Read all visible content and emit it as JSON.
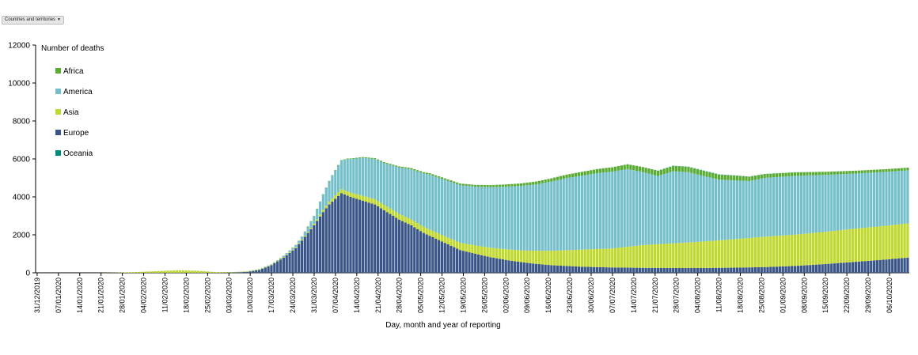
{
  "controls": {
    "filter_label": "Countries and territories",
    "filter_caret": "▼"
  },
  "chart_data": {
    "type": "bar",
    "stacked": true,
    "ylabel": "Number of deaths",
    "xlabel": "Day, month and year of reporting",
    "ylim": [
      0,
      12000
    ],
    "yticks": [
      0,
      2000,
      4000,
      6000,
      8000,
      10000,
      12000
    ],
    "x_start": "2019-12-31",
    "x_end": "2020-10-12",
    "xticks": [
      "31/12/2019",
      "07/01/2020",
      "14/01/2020",
      "21/01/2020",
      "28/01/2020",
      "04/02/2020",
      "11/02/2020",
      "18/02/2020",
      "25/02/2020",
      "03/03/2020",
      "10/03/2020",
      "17/03/2020",
      "24/03/2020",
      "31/03/2020",
      "07/04/2020",
      "14/04/2020",
      "21/04/2020",
      "28/04/2020",
      "05/05/2020",
      "12/05/2020",
      "19/05/2020",
      "26/05/2020",
      "02/06/2020",
      "09/06/2020",
      "16/06/2020",
      "23/06/2020",
      "30/06/2020",
      "07/07/2020",
      "14/07/2020",
      "21/07/2020",
      "28/07/2020",
      "04/08/2020",
      "11/08/2020",
      "18/08/2020",
      "25/08/2020",
      "01/09/2020",
      "08/09/2020",
      "15/09/2020",
      "22/09/2020",
      "29/09/2020",
      "06/10/2020"
    ],
    "legend_position": "top-left",
    "grid": false,
    "series_order": [
      "Europe",
      "Asia",
      "America",
      "Africa",
      "Oceania"
    ],
    "series": [
      {
        "name": "Africa",
        "color": "#5aab32",
        "values": [
          [
            1,
            0
          ],
          [
            70,
            4
          ],
          [
            80,
            5
          ],
          [
            90,
            10
          ],
          [
            100,
            25
          ],
          [
            110,
            40
          ],
          [
            120,
            55
          ],
          [
            130,
            65
          ],
          [
            140,
            85
          ],
          [
            150,
            100
          ],
          [
            160,
            130
          ],
          [
            170,
            170
          ],
          [
            180,
            200
          ],
          [
            190,
            230
          ],
          [
            200,
            260
          ],
          [
            210,
            280
          ],
          [
            220,
            270
          ],
          [
            230,
            250
          ],
          [
            240,
            200
          ],
          [
            250,
            180
          ],
          [
            260,
            160
          ],
          [
            270,
            150
          ],
          [
            280,
            140
          ],
          [
            287,
            140
          ]
        ]
      },
      {
        "name": "America",
        "color": "#74bfc9",
        "values": [
          [
            1,
            0
          ],
          [
            60,
            0
          ],
          [
            70,
            5
          ],
          [
            80,
            30
          ],
          [
            88,
            150
          ],
          [
            92,
            400
          ],
          [
            98,
            1200
          ],
          [
            103,
            1700
          ],
          [
            108,
            2000
          ],
          [
            115,
            2200
          ],
          [
            123,
            2600
          ],
          [
            130,
            2900
          ],
          [
            137,
            3000
          ],
          [
            145,
            3100
          ],
          [
            155,
            3300
          ],
          [
            165,
            3500
          ],
          [
            175,
            3800
          ],
          [
            185,
            4000
          ],
          [
            195,
            4100
          ],
          [
            205,
            3600
          ],
          [
            210,
            3800
          ],
          [
            215,
            3700
          ],
          [
            225,
            3200
          ],
          [
            235,
            3000
          ],
          [
            240,
            3100
          ],
          [
            250,
            3100
          ],
          [
            260,
            3000
          ],
          [
            270,
            2900
          ],
          [
            287,
            2800
          ]
        ]
      },
      {
        "name": "Asia",
        "color": "#c1d82f",
        "values": [
          [
            1,
            0
          ],
          [
            20,
            0
          ],
          [
            25,
            5
          ],
          [
            30,
            20
          ],
          [
            35,
            50
          ],
          [
            40,
            80
          ],
          [
            44,
            110
          ],
          [
            47,
            130
          ],
          [
            50,
            120
          ],
          [
            53,
            110
          ],
          [
            60,
            30
          ],
          [
            65,
            20
          ],
          [
            70,
            20
          ],
          [
            75,
            25
          ],
          [
            80,
            30
          ],
          [
            85,
            40
          ],
          [
            90,
            60
          ],
          [
            95,
            120
          ],
          [
            100,
            200
          ],
          [
            110,
            270
          ],
          [
            120,
            300
          ],
          [
            130,
            330
          ],
          [
            140,
            380
          ],
          [
            150,
            500
          ],
          [
            160,
            620
          ],
          [
            170,
            760
          ],
          [
            180,
            900
          ],
          [
            190,
            1000
          ],
          [
            200,
            1200
          ],
          [
            210,
            1300
          ],
          [
            220,
            1400
          ],
          [
            230,
            1500
          ],
          [
            240,
            1600
          ],
          [
            250,
            1650
          ],
          [
            260,
            1700
          ],
          [
            270,
            1750
          ],
          [
            287,
            1800
          ]
        ]
      },
      {
        "name": "Europe",
        "color": "#3a5688",
        "values": [
          [
            1,
            0
          ],
          [
            60,
            0
          ],
          [
            65,
            10
          ],
          [
            70,
            50
          ],
          [
            74,
            150
          ],
          [
            78,
            400
          ],
          [
            82,
            800
          ],
          [
            86,
            1300
          ],
          [
            89,
            1900
          ],
          [
            92,
            2500
          ],
          [
            95,
            3200
          ],
          [
            97,
            3600
          ],
          [
            99,
            3900
          ],
          [
            101,
            4200
          ],
          [
            104,
            4000
          ],
          [
            108,
            3800
          ],
          [
            112,
            3600
          ],
          [
            116,
            3200
          ],
          [
            120,
            2800
          ],
          [
            124,
            2500
          ],
          [
            128,
            2100
          ],
          [
            132,
            1800
          ],
          [
            136,
            1500
          ],
          [
            140,
            1200
          ],
          [
            145,
            1000
          ],
          [
            150,
            820
          ],
          [
            155,
            680
          ],
          [
            160,
            560
          ],
          [
            165,
            470
          ],
          [
            170,
            400
          ],
          [
            180,
            320
          ],
          [
            190,
            280
          ],
          [
            200,
            260
          ],
          [
            210,
            250
          ],
          [
            220,
            250
          ],
          [
            230,
            270
          ],
          [
            240,
            300
          ],
          [
            250,
            360
          ],
          [
            260,
            460
          ],
          [
            270,
            580
          ],
          [
            280,
            700
          ],
          [
            287,
            800
          ]
        ]
      },
      {
        "name": "Oceania",
        "color": "#008c7a",
        "values": [
          [
            1,
            0
          ],
          [
            90,
            0
          ],
          [
            95,
            2
          ],
          [
            100,
            5
          ],
          [
            110,
            3
          ],
          [
            120,
            1
          ],
          [
            180,
            1
          ],
          [
            200,
            5
          ],
          [
            215,
            15
          ],
          [
            225,
            15
          ],
          [
            240,
            8
          ],
          [
            260,
            2
          ],
          [
            287,
            1
          ]
        ]
      }
    ]
  }
}
